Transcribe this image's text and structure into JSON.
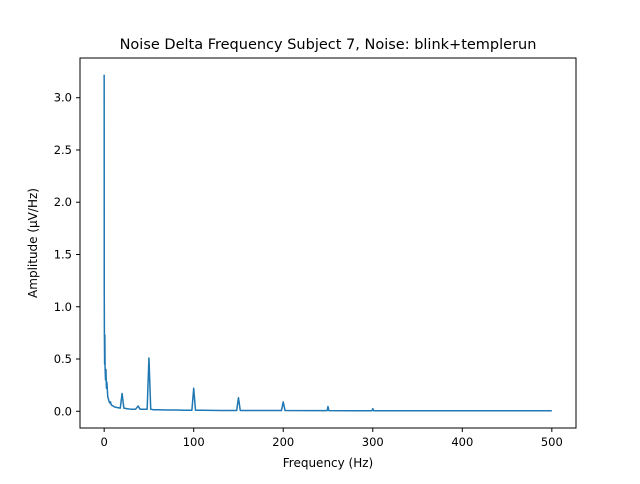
{
  "chart_data": {
    "type": "line",
    "title": "Noise Delta Frequency Subject 7, Noise: blink+templerun",
    "xlabel": "Frequency (Hz)",
    "ylabel": "Amplitude (μV/Hz)",
    "xlim": [
      -27,
      527
    ],
    "ylim": [
      -0.16,
      3.38
    ],
    "xticks": [
      0,
      100,
      200,
      300,
      400,
      500
    ],
    "yticks": [
      0.0,
      0.5,
      1.0,
      1.5,
      2.0,
      2.5,
      3.0
    ],
    "xtick_labels": [
      "0",
      "100",
      "200",
      "300",
      "400",
      "500"
    ],
    "ytick_labels": [
      "0.0",
      "0.5",
      "1.0",
      "1.5",
      "2.0",
      "2.5",
      "3.0"
    ],
    "grid": false,
    "legend": "none",
    "series": [
      {
        "color": "#1f77b4",
        "x": [
          0,
          0.1,
          0.25,
          0.5,
          0.75,
          1,
          1.5,
          2,
          2.5,
          3,
          4,
          5,
          6,
          7,
          8,
          10,
          12,
          15,
          18,
          20,
          22,
          25,
          30,
          35,
          38,
          40,
          42,
          45,
          48,
          50,
          52,
          55,
          60,
          70,
          80,
          90,
          98,
          100,
          102,
          110,
          130,
          148,
          150,
          152,
          170,
          198,
          200,
          202,
          230,
          249,
          250,
          251,
          280,
          299,
          300,
          301,
          350,
          400,
          450,
          500
        ],
        "y": [
          3.22,
          1.12,
          0.74,
          0.45,
          0.73,
          0.42,
          0.3,
          0.4,
          0.22,
          0.28,
          0.14,
          0.11,
          0.08,
          0.09,
          0.06,
          0.05,
          0.04,
          0.035,
          0.03,
          0.17,
          0.03,
          0.025,
          0.02,
          0.02,
          0.05,
          0.02,
          0.02,
          0.02,
          0.02,
          0.51,
          0.02,
          0.015,
          0.015,
          0.012,
          0.012,
          0.01,
          0.01,
          0.22,
          0.01,
          0.01,
          0.008,
          0.008,
          0.13,
          0.008,
          0.007,
          0.007,
          0.09,
          0.007,
          0.006,
          0.006,
          0.045,
          0.006,
          0.005,
          0.005,
          0.025,
          0.005,
          0.005,
          0.005,
          0.005,
          0.005
        ]
      }
    ]
  }
}
